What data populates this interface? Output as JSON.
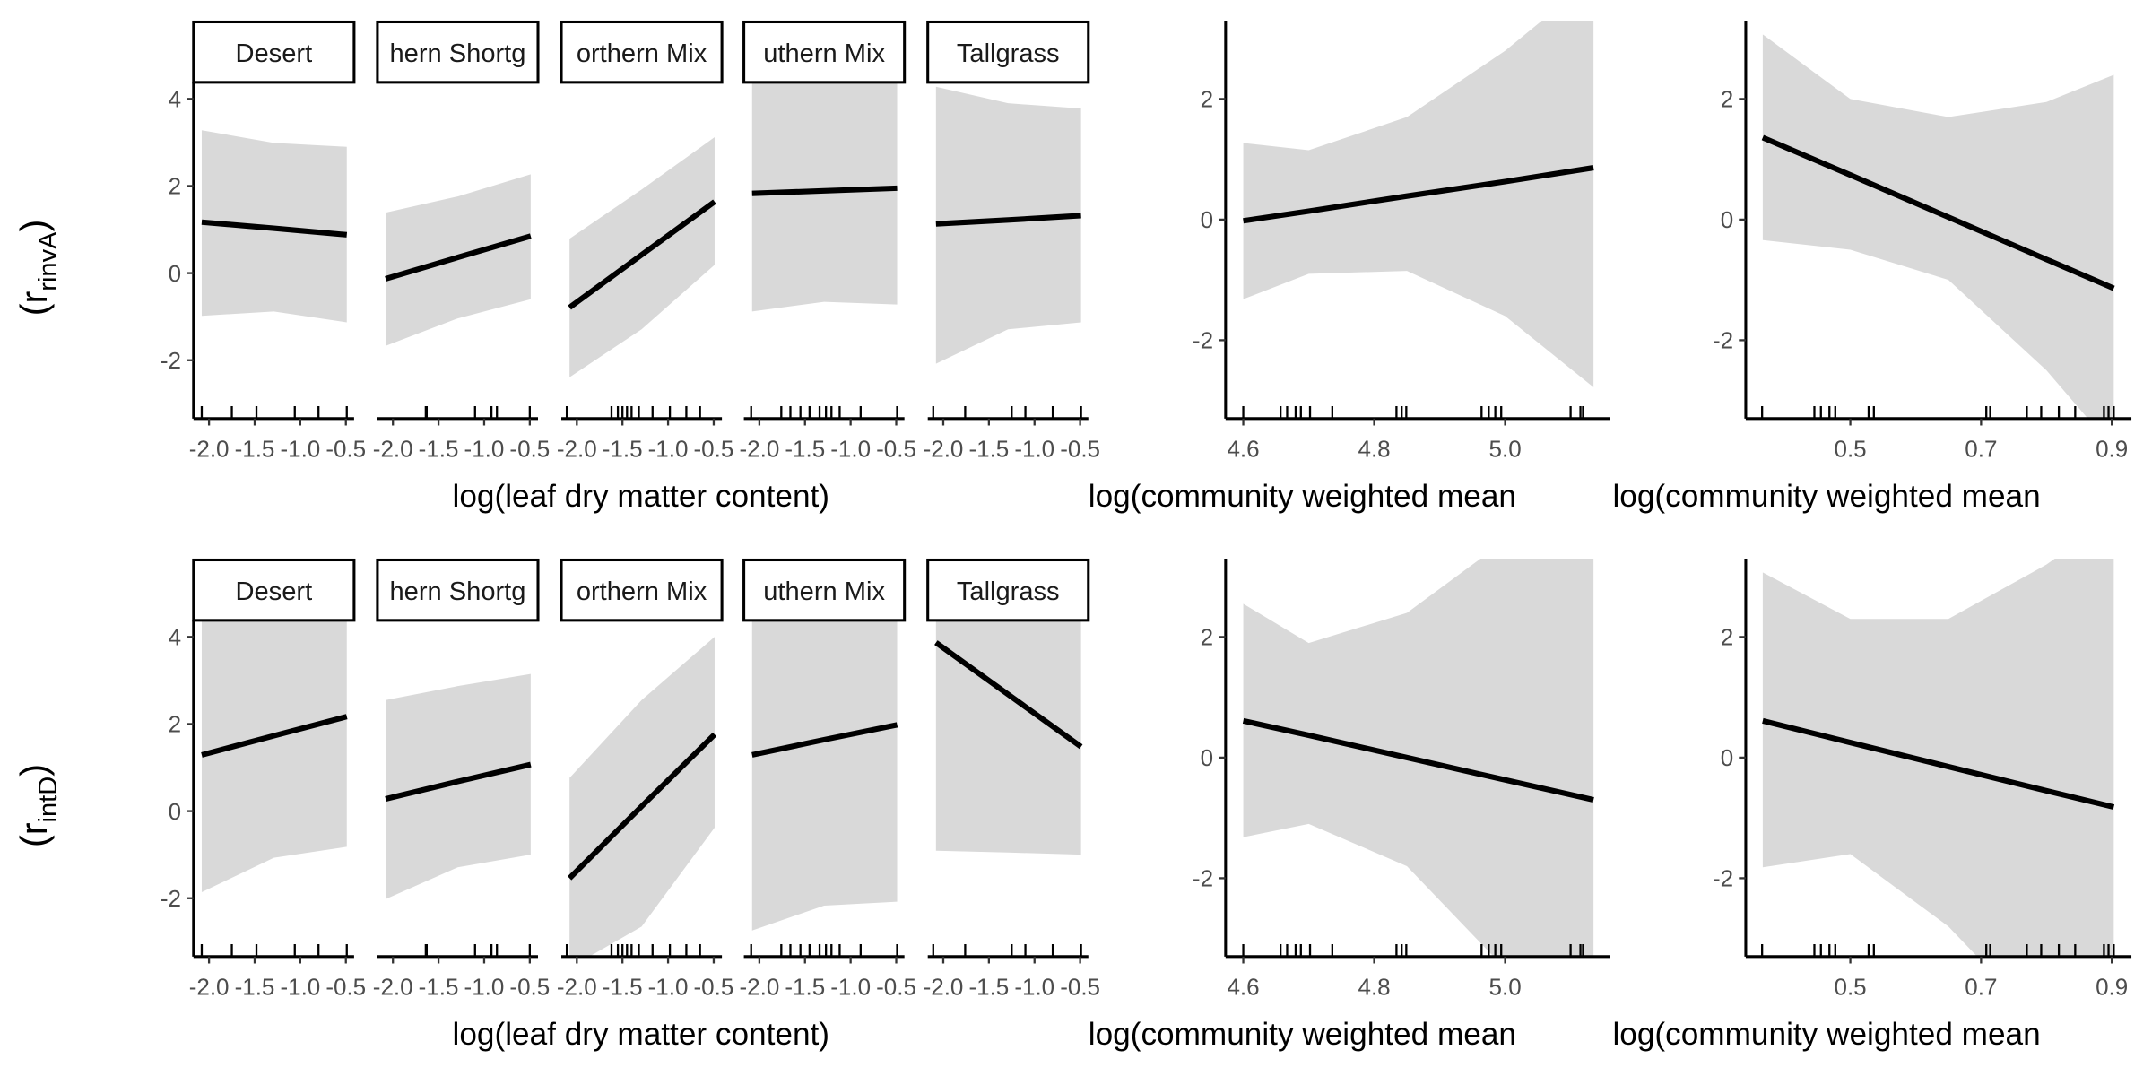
{
  "chart_data": [
    {
      "type": "facet-line",
      "ylabel": {
        "open": "(r",
        "sub": "rinvA",
        "close": ")"
      },
      "xlabel": "log(leaf dry matter content)",
      "color": "#000000",
      "band_color": "#d9d9d9",
      "xlim": [
        -2.17,
        -0.41
      ],
      "xticks": [
        {
          "value": -2.0,
          "label": "-2.0"
        },
        {
          "value": -1.5,
          "label": "-1.5"
        },
        {
          "value": -1.0,
          "label": "-1.0"
        },
        {
          "value": -0.5,
          "label": "-0.5"
        }
      ],
      "ylim": [
        -3.34,
        4.38
      ],
      "yticks": [
        -2,
        0,
        2,
        4
      ],
      "facets": [
        {
          "strip": "Desert",
          "x": [
            -2.08,
            -1.29,
            -0.49
          ],
          "values": [
            1.17,
            1.03,
            0.88
          ],
          "lower": [
            -0.98,
            -0.88,
            -1.13
          ],
          "upper": [
            3.28,
            2.99,
            2.9
          ],
          "rug": [
            -2.08,
            -1.75,
            -1.48,
            -1.06,
            -0.8,
            -0.49
          ]
        },
        {
          "strip": "hern Shortg",
          "x": [
            -2.08,
            -1.29,
            -0.49
          ],
          "values": [
            -0.13,
            0.36,
            0.85
          ],
          "lower": [
            -1.67,
            -1.04,
            -0.6
          ],
          "upper": [
            1.39,
            1.76,
            2.27
          ],
          "rug": [
            -1.64,
            -1.63,
            -1.1,
            -0.92,
            -0.86,
            -0.5
          ]
        },
        {
          "strip": "orthern Mix",
          "x": [
            -2.08,
            -1.29,
            -0.49
          ],
          "values": [
            -0.79,
            0.42,
            1.64
          ],
          "lower": [
            -2.39,
            -1.29,
            0.19
          ],
          "upper": [
            0.79,
            1.92,
            3.12
          ],
          "rug": [
            -2.11,
            -1.62,
            -1.55,
            -1.5,
            -1.45,
            -1.4,
            -1.32,
            -1.17,
            -0.98,
            -0.8,
            -0.65
          ]
        },
        {
          "strip": "uthern Mix",
          "x": [
            -2.08,
            -1.29,
            -0.49
          ],
          "values": [
            1.83,
            1.89,
            1.95
          ],
          "lower": [
            -0.88,
            -0.66,
            -0.72
          ],
          "upper": [
            4.4,
            4.4,
            4.4
          ],
          "rug": [
            -2.09,
            -1.76,
            -1.66,
            -1.55,
            -1.45,
            -1.34,
            -1.27,
            -1.21,
            -1.12,
            -0.89,
            -0.49
          ]
        },
        {
          "strip": "Tallgrass",
          "x": [
            -2.08,
            -1.29,
            -0.49
          ],
          "values": [
            1.13,
            1.22,
            1.32
          ],
          "lower": [
            -2.08,
            -1.29,
            -1.13
          ],
          "upper": [
            4.28,
            3.9,
            3.78
          ],
          "rug": [
            -2.11,
            -1.76,
            -1.25,
            -1.1,
            -0.8,
            -0.49
          ]
        }
      ]
    },
    {
      "type": "line",
      "xlabel": "log(community weighted mean",
      "color": "#000000",
      "band_color": "#d9d9d9",
      "xlim": [
        4.573,
        5.16
      ],
      "xticks": [
        4.6,
        4.8,
        {
          "value": 5.0,
          "label": "5.0"
        }
      ],
      "ylim": [
        -3.3,
        3.3
      ],
      "yticks": [
        -2,
        0,
        2
      ],
      "x": [
        4.6,
        4.7,
        4.85,
        5.0,
        5.135
      ],
      "values": [
        -0.02,
        0.14,
        0.39,
        0.63,
        0.86
      ],
      "lower": [
        -1.32,
        -0.9,
        -0.85,
        -1.6,
        -2.78
      ],
      "upper": [
        1.27,
        1.15,
        1.7,
        2.8,
        4.0
      ],
      "rug": [
        4.6,
        4.657,
        4.667,
        4.68,
        4.688,
        4.702,
        4.736,
        4.834,
        4.842,
        4.849,
        4.964,
        4.975,
        4.985,
        4.994,
        5.1,
        5.115,
        5.119
      ]
    },
    {
      "type": "line",
      "xlabel": "log(community weighted mean",
      "color": "#000000",
      "band_color": "#d9d9d9",
      "xlim": [
        0.34,
        0.93
      ],
      "xticks": [
        0.5,
        0.7,
        0.9
      ],
      "ylim": [
        -3.3,
        3.3
      ],
      "yticks": [
        -2,
        0,
        2
      ],
      "x": [
        0.366,
        0.5,
        0.65,
        0.8,
        0.903
      ],
      "values": [
        1.36,
        0.74,
        0.04,
        -0.66,
        -1.14
      ],
      "lower": [
        -0.34,
        -0.5,
        -1.0,
        -2.5,
        -3.8
      ],
      "upper": [
        3.07,
        2.0,
        1.7,
        1.95,
        2.4
      ],
      "rug": [
        0.365,
        0.445,
        0.455,
        0.468,
        0.477,
        0.528,
        0.536,
        0.708,
        0.714,
        0.77,
        0.792,
        0.819,
        0.844,
        0.888,
        0.895,
        0.903
      ]
    },
    {
      "type": "facet-line",
      "ylabel": {
        "open": "(r",
        "sub": "intD",
        "close": ")"
      },
      "xlabel": "log(leaf dry matter content)",
      "color": "#000000",
      "band_color": "#d9d9d9",
      "xlim": [
        -2.17,
        -0.41
      ],
      "xticks": [
        {
          "value": -2.0,
          "label": "-2.0"
        },
        {
          "value": -1.5,
          "label": "-1.5"
        },
        {
          "value": -1.0,
          "label": "-1.0"
        },
        {
          "value": -0.5,
          "label": "-0.5"
        }
      ],
      "ylim": [
        -3.34,
        4.38
      ],
      "yticks": [
        -2,
        0,
        2,
        4
      ],
      "facets": [
        {
          "strip": "Desert",
          "x": [
            -2.08,
            -1.29,
            -0.49
          ],
          "values": [
            1.29,
            1.73,
            2.17
          ],
          "lower": [
            -1.86,
            -1.07,
            -0.82
          ],
          "upper": [
            4.4,
            4.4,
            4.4
          ],
          "rug": [
            -2.08,
            -1.75,
            -1.48,
            -1.06,
            -0.8,
            -0.49
          ]
        },
        {
          "strip": "hern Shortg",
          "x": [
            -2.08,
            -1.29,
            -0.49
          ],
          "values": [
            0.28,
            0.68,
            1.07
          ],
          "lower": [
            -2.02,
            -1.29,
            -1.0
          ],
          "upper": [
            2.55,
            2.87,
            3.15
          ],
          "rug": [
            -1.64,
            -1.63,
            -1.1,
            -0.92,
            -0.86,
            -0.5
          ]
        },
        {
          "strip": "orthern Mix",
          "x": [
            -2.08,
            -1.29,
            -0.49
          ],
          "values": [
            -1.54,
            0.11,
            1.76
          ],
          "lower": [
            -3.6,
            -2.65,
            -0.38
          ],
          "upper": [
            0.76,
            2.55,
            4.0
          ],
          "rug": [
            -2.11,
            -1.62,
            -1.55,
            -1.5,
            -1.45,
            -1.4,
            -1.32,
            -1.17,
            -0.98,
            -0.8,
            -0.65
          ]
        },
        {
          "strip": "uthern Mix",
          "x": [
            -2.08,
            -1.29,
            -0.49
          ],
          "values": [
            1.29,
            1.64,
            1.98
          ],
          "lower": [
            -2.74,
            -2.17,
            -2.08
          ],
          "upper": [
            4.4,
            4.4,
            4.4
          ],
          "rug": [
            -2.09,
            -1.76,
            -1.66,
            -1.55,
            -1.45,
            -1.34,
            -1.27,
            -1.21,
            -1.12,
            -0.89,
            -0.49
          ]
        },
        {
          "strip": "Tallgrass",
          "x": [
            -2.08,
            -1.29,
            -0.49
          ],
          "values": [
            3.87,
            2.68,
            1.48
          ],
          "lower": [
            -0.91,
            -0.95,
            -1.0
          ],
          "upper": [
            4.4,
            4.4,
            4.4
          ],
          "rug": [
            -2.11,
            -1.76,
            -1.25,
            -1.1,
            -0.8,
            -0.49
          ]
        }
      ]
    },
    {
      "type": "line",
      "xlabel": "log(community weighted mean",
      "color": "#000000",
      "band_color": "#d9d9d9",
      "xlim": [
        4.573,
        5.16
      ],
      "xticks": [
        4.6,
        4.8,
        {
          "value": 5.0,
          "label": "5.0"
        }
      ],
      "ylim": [
        -3.3,
        3.3
      ],
      "yticks": [
        -2,
        0,
        2
      ],
      "x": [
        4.6,
        4.7,
        4.85,
        5.0,
        5.135
      ],
      "values": [
        0.61,
        0.37,
        0.0,
        -0.37,
        -0.7
      ],
      "lower": [
        -1.32,
        -1.1,
        -1.8,
        -3.5,
        -5.0
      ],
      "upper": [
        2.55,
        1.9,
        2.4,
        3.6,
        4.5
      ],
      "rug": [
        4.6,
        4.657,
        4.667,
        4.68,
        4.688,
        4.702,
        4.736,
        4.834,
        4.842,
        4.849,
        4.964,
        4.975,
        4.985,
        4.994,
        5.1,
        5.115,
        5.119
      ]
    },
    {
      "type": "line",
      "xlabel": "log(community weighted mean",
      "color": "#000000",
      "band_color": "#d9d9d9",
      "xlim": [
        0.34,
        0.93
      ],
      "xticks": [
        0.5,
        0.7,
        0.9
      ],
      "ylim": [
        -3.3,
        3.3
      ],
      "yticks": [
        -2,
        0,
        2
      ],
      "x": [
        0.366,
        0.5,
        0.65,
        0.8,
        0.903
      ],
      "values": [
        0.61,
        0.25,
        -0.15,
        -0.55,
        -0.82
      ],
      "lower": [
        -1.82,
        -1.6,
        -2.8,
        -4.5,
        -6.0
      ],
      "upper": [
        3.07,
        2.3,
        2.3,
        3.2,
        4.0
      ],
      "rug": [
        0.365,
        0.445,
        0.455,
        0.468,
        0.477,
        0.528,
        0.536,
        0.708,
        0.714,
        0.77,
        0.792,
        0.819,
        0.844,
        0.888,
        0.895,
        0.903
      ]
    }
  ]
}
